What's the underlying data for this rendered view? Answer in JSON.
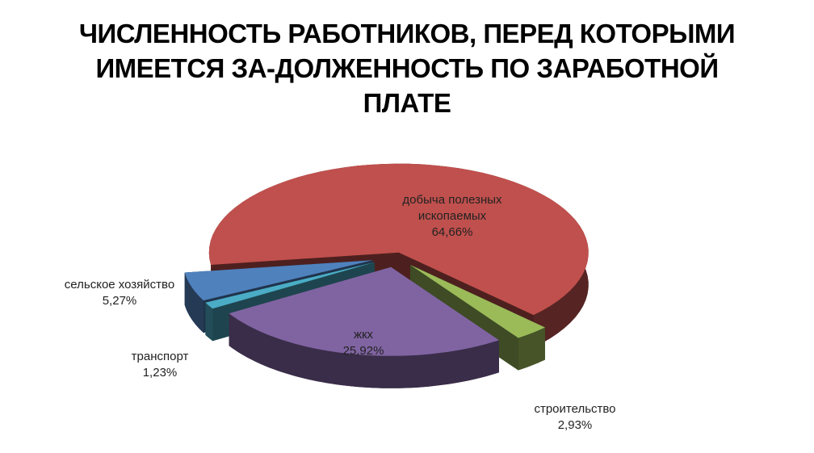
{
  "chart_data": {
    "type": "pie3d",
    "title": "ЧИСЛЕННОСТЬ РАБОТНИКОВ, ПЕРЕД КОТОРЫМИ ИМЕЕТСЯ ЗА-ДОЛЖЕННОСТЬ ПО ЗАРАБОТНОЙ ПЛАТЕ",
    "categories": [
      "добыча полезных ископаемых",
      "строительство",
      "жкх",
      "транспорт",
      "сельское хозяйство"
    ],
    "values": [
      64.66,
      2.93,
      25.92,
      1.23,
      5.27
    ],
    "value_labels": [
      "64,66%",
      "2,93%",
      "25,92%",
      "1,23%",
      "5,27%"
    ],
    "colors": [
      "#c0504d",
      "#9bbb59",
      "#8064a2",
      "#4bacc6",
      "#4f81bd"
    ]
  }
}
